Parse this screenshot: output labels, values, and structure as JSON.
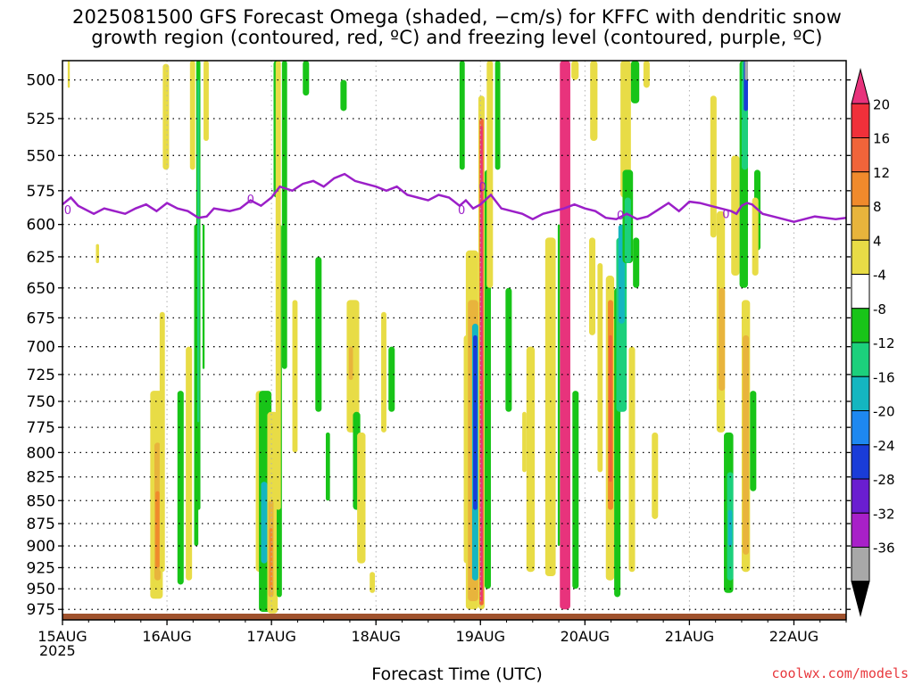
{
  "title": "2025081500 GFS Forecast Omega (shaded, −cm/s) for KFFC with dendritic snow\ngrowth region (contoured, red, ºC) and freezing level (contoured, purple, ºC)",
  "xlabel": "Forecast Time (UTC)",
  "credit": "coolwx.com/models",
  "year_label": "2025",
  "colors": {
    "freezing_line": "#9b1fc8",
    "ground": "#a0522d",
    "grid": "#000000"
  },
  "chart_data": {
    "type": "heatmap",
    "title": "2025081500 GFS Forecast Omega (shaded, −cm/s) for KFFC with dendritic snow growth region (contoured, red, ºC) and freezing level (contoured, purple, ºC)",
    "xlabel": "Forecast Time (UTC)",
    "ylabel": "",
    "x_tick_labels": [
      "15AUG",
      "16AUG",
      "17AUG",
      "18AUG",
      "19AUG",
      "20AUG",
      "21AUG",
      "22AUG"
    ],
    "x_range_days": [
      0,
      7.5
    ],
    "y_tick_labels": [
      "500",
      "525",
      "550",
      "575",
      "600",
      "625",
      "650",
      "675",
      "700",
      "725",
      "750",
      "775",
      "800",
      "825",
      "850",
      "875",
      "900",
      "925",
      "950",
      "975"
    ],
    "y_range": [
      488,
      988
    ],
    "y_log": true,
    "colorbar": {
      "labels": [
        "20",
        "16",
        "12",
        "8",
        "4",
        "-4",
        "-8",
        "-12",
        "-16",
        "-20",
        "-24",
        "-28",
        "-32",
        "-36"
      ],
      "colors": [
        "#e8337c",
        "#f0303a",
        "#f0643a",
        "#f08a2c",
        "#e8b43c",
        "#e8dc46",
        "#ffffff",
        "#18c418",
        "#1cd07c",
        "#14b6c0",
        "#1e88f0",
        "#1a3cd8",
        "#6a1ed0",
        "#a820c8",
        "#a8a8a8",
        "#000000"
      ]
    },
    "omega_features": [
      {
        "x0": 0.05,
        "x1": 0.07,
        "p0": 488,
        "p1": 505,
        "v": 4
      },
      {
        "x0": 0.32,
        "x1": 0.35,
        "p0": 615,
        "p1": 630,
        "v": 4
      },
      {
        "x0": 0.84,
        "x1": 0.96,
        "p0": 740,
        "p1": 962,
        "v": 4
      },
      {
        "x0": 0.88,
        "x1": 0.94,
        "p0": 790,
        "p1": 940,
        "v": 8
      },
      {
        "x0": 0.89,
        "x1": 0.93,
        "p0": 840,
        "p1": 925,
        "v": 12
      },
      {
        "x0": 0.93,
        "x1": 0.98,
        "p0": 670,
        "p1": 930,
        "v": 4
      },
      {
        "x0": 0.96,
        "x1": 1.02,
        "p0": 490,
        "p1": 560,
        "v": 4
      },
      {
        "x0": 1.1,
        "x1": 1.16,
        "p0": 740,
        "p1": 945,
        "v": -8
      },
      {
        "x0": 1.18,
        "x1": 1.24,
        "p0": 700,
        "p1": 940,
        "v": 4
      },
      {
        "x0": 1.22,
        "x1": 1.27,
        "p0": 488,
        "p1": 560,
        "v": 4
      },
      {
        "x0": 1.26,
        "x1": 1.3,
        "p0": 600,
        "p1": 900,
        "v": -8
      },
      {
        "x0": 1.28,
        "x1": 1.32,
        "p0": 488,
        "p1": 860,
        "v": -8
      },
      {
        "x0": 1.29,
        "x1": 1.31,
        "p0": 500,
        "p1": 770,
        "v": -12
      },
      {
        "x0": 1.35,
        "x1": 1.4,
        "p0": 488,
        "p1": 540,
        "v": 4
      },
      {
        "x0": 1.34,
        "x1": 1.36,
        "p0": 600,
        "p1": 720,
        "v": -8
      },
      {
        "x0": 1.85,
        "x1": 1.92,
        "p0": 740,
        "p1": 930,
        "v": 4
      },
      {
        "x0": 1.88,
        "x1": 2.0,
        "p0": 740,
        "p1": 978,
        "v": -8
      },
      {
        "x0": 1.9,
        "x1": 1.96,
        "p0": 830,
        "p1": 920,
        "v": -16
      },
      {
        "x0": 1.96,
        "x1": 2.06,
        "p0": 760,
        "p1": 980,
        "v": 4
      },
      {
        "x0": 1.97,
        "x1": 2.02,
        "p0": 850,
        "p1": 960,
        "v": 8
      },
      {
        "x0": 1.98,
        "x1": 2.01,
        "p0": 880,
        "p1": 950,
        "v": 12
      },
      {
        "x0": 2.02,
        "x1": 2.08,
        "p0": 488,
        "p1": 580,
        "v": -8
      },
      {
        "x0": 2.05,
        "x1": 2.1,
        "p0": 600,
        "p1": 960,
        "v": -8
      },
      {
        "x0": 2.04,
        "x1": 2.09,
        "p0": 488,
        "p1": 860,
        "v": 4
      },
      {
        "x0": 2.1,
        "x1": 2.15,
        "p0": 488,
        "p1": 720,
        "v": -8
      },
      {
        "x0": 2.2,
        "x1": 2.25,
        "p0": 660,
        "p1": 800,
        "v": 4
      },
      {
        "x0": 2.3,
        "x1": 2.36,
        "p0": 488,
        "p1": 510,
        "v": -8
      },
      {
        "x0": 2.42,
        "x1": 2.48,
        "p0": 625,
        "p1": 760,
        "v": -8
      },
      {
        "x0": 2.52,
        "x1": 2.56,
        "p0": 780,
        "p1": 850,
        "v": -8
      },
      {
        "x0": 2.66,
        "x1": 2.72,
        "p0": 500,
        "p1": 520,
        "v": -8
      },
      {
        "x0": 2.72,
        "x1": 2.84,
        "p0": 660,
        "p1": 780,
        "v": 4
      },
      {
        "x0": 2.74,
        "x1": 2.78,
        "p0": 700,
        "p1": 730,
        "v": 8
      },
      {
        "x0": 2.78,
        "x1": 2.85,
        "p0": 760,
        "p1": 860,
        "v": -8
      },
      {
        "x0": 2.82,
        "x1": 2.9,
        "p0": 780,
        "p1": 920,
        "v": 4
      },
      {
        "x0": 2.94,
        "x1": 2.99,
        "p0": 930,
        "p1": 955,
        "v": 4
      },
      {
        "x0": 3.05,
        "x1": 3.1,
        "p0": 670,
        "p1": 780,
        "v": 4
      },
      {
        "x0": 3.12,
        "x1": 3.18,
        "p0": 700,
        "p1": 760,
        "v": -8
      },
      {
        "x0": 3.8,
        "x1": 3.85,
        "p0": 488,
        "p1": 560,
        "v": -8
      },
      {
        "x0": 3.84,
        "x1": 3.9,
        "p0": 690,
        "p1": 920,
        "v": 4
      },
      {
        "x0": 3.86,
        "x1": 3.98,
        "p0": 620,
        "p1": 975,
        "v": 4
      },
      {
        "x0": 3.88,
        "x1": 3.98,
        "p0": 660,
        "p1": 965,
        "v": 8
      },
      {
        "x0": 3.92,
        "x1": 3.98,
        "p0": 680,
        "p1": 940,
        "v": -16
      },
      {
        "x0": 3.93,
        "x1": 3.97,
        "p0": 690,
        "p1": 860,
        "v": -24
      },
      {
        "x0": 3.98,
        "x1": 4.04,
        "p0": 510,
        "p1": 975,
        "v": 4
      },
      {
        "x0": 3.99,
        "x1": 4.03,
        "p0": 525,
        "p1": 970,
        "v": 16
      },
      {
        "x0": 4.0,
        "x1": 4.02,
        "p0": 530,
        "p1": 965,
        "v": 20
      },
      {
        "x0": 4.04,
        "x1": 4.1,
        "p0": 560,
        "p1": 950,
        "v": -8
      },
      {
        "x0": 4.06,
        "x1": 4.12,
        "p0": 488,
        "p1": 650,
        "v": 4
      },
      {
        "x0": 4.14,
        "x1": 4.19,
        "p0": 488,
        "p1": 560,
        "v": -8
      },
      {
        "x0": 4.24,
        "x1": 4.3,
        "p0": 650,
        "p1": 760,
        "v": -8
      },
      {
        "x0": 4.4,
        "x1": 4.44,
        "p0": 760,
        "p1": 820,
        "v": 4
      },
      {
        "x0": 4.44,
        "x1": 4.52,
        "p0": 700,
        "p1": 930,
        "v": 4
      },
      {
        "x0": 4.62,
        "x1": 4.72,
        "p0": 610,
        "p1": 935,
        "v": 4
      },
      {
        "x0": 4.76,
        "x1": 4.86,
        "p0": 488,
        "p1": 975,
        "v": 20
      },
      {
        "x0": 4.74,
        "x1": 4.76,
        "p0": 600,
        "p1": 900,
        "v": -8
      },
      {
        "x0": 4.87,
        "x1": 4.94,
        "p0": 488,
        "p1": 500,
        "v": 4
      },
      {
        "x0": 4.88,
        "x1": 4.94,
        "p0": 740,
        "p1": 950,
        "v": -8
      },
      {
        "x0": 5.05,
        "x1": 5.12,
        "p0": 488,
        "p1": 540,
        "v": 4
      },
      {
        "x0": 5.04,
        "x1": 5.1,
        "p0": 610,
        "p1": 690,
        "v": 4
      },
      {
        "x0": 5.12,
        "x1": 5.17,
        "p0": 630,
        "p1": 820,
        "v": 4
      },
      {
        "x0": 5.2,
        "x1": 5.28,
        "p0": 640,
        "p1": 940,
        "v": 4
      },
      {
        "x0": 5.22,
        "x1": 5.27,
        "p0": 660,
        "p1": 860,
        "v": 12
      },
      {
        "x0": 5.23,
        "x1": 5.26,
        "p0": 690,
        "p1": 830,
        "v": 16
      },
      {
        "x0": 5.28,
        "x1": 5.34,
        "p0": 650,
        "p1": 960,
        "v": -8
      },
      {
        "x0": 5.3,
        "x1": 5.4,
        "p0": 610,
        "p1": 760,
        "v": -12
      },
      {
        "x0": 5.32,
        "x1": 5.38,
        "p0": 600,
        "p1": 680,
        "v": -16
      },
      {
        "x0": 5.34,
        "x1": 5.44,
        "p0": 488,
        "p1": 580,
        "v": 4
      },
      {
        "x0": 5.36,
        "x1": 5.46,
        "p0": 560,
        "p1": 630,
        "v": -8
      },
      {
        "x0": 5.38,
        "x1": 5.44,
        "p0": 580,
        "p1": 630,
        "v": -12
      },
      {
        "x0": 5.42,
        "x1": 5.48,
        "p0": 700,
        "p1": 930,
        "v": 4
      },
      {
        "x0": 5.44,
        "x1": 5.52,
        "p0": 488,
        "p1": 515,
        "v": -8
      },
      {
        "x0": 5.46,
        "x1": 5.52,
        "p0": 610,
        "p1": 650,
        "v": -8
      },
      {
        "x0": 5.56,
        "x1": 5.62,
        "p0": 488,
        "p1": 505,
        "v": 4
      },
      {
        "x0": 5.64,
        "x1": 5.7,
        "p0": 780,
        "p1": 870,
        "v": 4
      },
      {
        "x0": 6.2,
        "x1": 6.26,
        "p0": 510,
        "p1": 610,
        "v": 4
      },
      {
        "x0": 6.26,
        "x1": 6.34,
        "p0": 590,
        "p1": 780,
        "v": 4
      },
      {
        "x0": 6.28,
        "x1": 6.34,
        "p0": 650,
        "p1": 740,
        "v": 8
      },
      {
        "x0": 6.33,
        "x1": 6.42,
        "p0": 780,
        "p1": 955,
        "v": -8
      },
      {
        "x0": 6.36,
        "x1": 6.42,
        "p0": 820,
        "p1": 940,
        "v": -12
      },
      {
        "x0": 6.37,
        "x1": 6.41,
        "p0": 860,
        "p1": 900,
        "v": -16
      },
      {
        "x0": 6.4,
        "x1": 6.48,
        "p0": 550,
        "p1": 640,
        "v": 4
      },
      {
        "x0": 6.48,
        "x1": 6.56,
        "p0": 488,
        "p1": 650,
        "v": -8
      },
      {
        "x0": 6.5,
        "x1": 6.56,
        "p0": 488,
        "p1": 560,
        "v": -12
      },
      {
        "x0": 6.52,
        "x1": 6.56,
        "p0": 488,
        "p1": 520,
        "v": -24
      },
      {
        "x0": 6.53,
        "x1": 6.56,
        "p0": 488,
        "p1": 500,
        "v": -36
      },
      {
        "x0": 6.5,
        "x1": 6.58,
        "p0": 660,
        "p1": 930,
        "v": 4
      },
      {
        "x0": 6.51,
        "x1": 6.57,
        "p0": 690,
        "p1": 910,
        "v": 8
      },
      {
        "x0": 6.58,
        "x1": 6.64,
        "p0": 740,
        "p1": 840,
        "v": -8
      },
      {
        "x0": 6.62,
        "x1": 6.68,
        "p0": 560,
        "p1": 620,
        "v": -8
      },
      {
        "x0": 6.6,
        "x1": 6.66,
        "p0": 580,
        "p1": 640,
        "v": 4
      }
    ],
    "freezing_level": {
      "x": [
        0.0,
        0.08,
        0.15,
        0.3,
        0.4,
        0.5,
        0.6,
        0.7,
        0.8,
        0.9,
        1.0,
        1.1,
        1.2,
        1.3,
        1.38,
        1.45,
        1.6,
        1.7,
        1.8,
        1.9,
        2.0,
        2.08,
        2.2,
        2.3,
        2.4,
        2.5,
        2.6,
        2.7,
        2.8,
        2.9,
        3.0,
        3.1,
        3.2,
        3.3,
        3.4,
        3.5,
        3.6,
        3.7,
        3.8,
        3.86,
        3.93,
        4.0,
        4.1,
        4.2,
        4.3,
        4.4,
        4.5,
        4.6,
        4.7,
        4.8,
        4.9,
        5.0,
        5.1,
        5.2,
        5.3,
        5.4,
        5.5,
        5.6,
        5.7,
        5.8,
        5.9,
        6.0,
        6.1,
        6.2,
        6.3,
        6.4,
        6.45,
        6.5,
        6.55,
        6.6,
        6.7,
        6.8,
        6.9,
        7.0,
        7.1,
        7.2,
        7.3,
        7.4,
        7.5
      ],
      "p": [
        585,
        580,
        586,
        592,
        588,
        590,
        592,
        588,
        585,
        590,
        584,
        588,
        590,
        595,
        594,
        588,
        590,
        588,
        582,
        586,
        580,
        572,
        575,
        570,
        568,
        572,
        566,
        563,
        568,
        570,
        572,
        575,
        572,
        578,
        580,
        582,
        578,
        580,
        586,
        582,
        588,
        585,
        578,
        588,
        590,
        592,
        596,
        592,
        590,
        588,
        585,
        588,
        590,
        595,
        596,
        592,
        596,
        594,
        589,
        584,
        590,
        583,
        584,
        586,
        588,
        590,
        592,
        586,
        584,
        585,
        592,
        594,
        596,
        598,
        596,
        594,
        595,
        596,
        595
      ]
    },
    "dendritic_markers": [
      {
        "x": 0.05,
        "p": 589
      },
      {
        "x": 1.8,
        "p": 581
      },
      {
        "x": 3.82,
        "p": 589
      },
      {
        "x": 4.02,
        "p": 572
      },
      {
        "x": 5.34,
        "p": 593
      },
      {
        "x": 6.35,
        "p": 592
      }
    ],
    "grid": true,
    "legend": "colorbar-right"
  }
}
